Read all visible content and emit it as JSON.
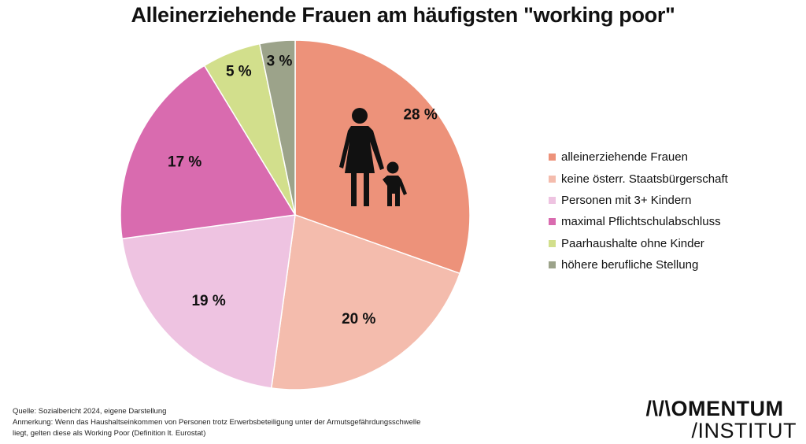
{
  "title": "Alleinerziehende Frauen am häufigsten \"working poor\"",
  "chart_data": {
    "type": "pie",
    "title": "Alleinerziehende Frauen am häufigsten \"working poor\"",
    "legend_position": "right",
    "slices": [
      {
        "label": "alleinerziehende Frauen",
        "value": 28,
        "display": "28 %",
        "color": "#ED927A"
      },
      {
        "label": "keine österr. Staatsbürgerschaft",
        "value": 20,
        "display": "20 %",
        "color": "#F4BCAD"
      },
      {
        "label": "Personen mit 3+ Kindern",
        "value": 19,
        "display": "19 %",
        "color": "#EEC3E1"
      },
      {
        "label": "maximal Pflichtschulabschluss",
        "value": 17,
        "display": "17 %",
        "color": "#D96BAF"
      },
      {
        "label": "Paarhaushalte ohne Kinder",
        "value": 5,
        "display": "5 %",
        "color": "#D2DF8C"
      },
      {
        "label": "höhere berufliche Stellung",
        "value": 3,
        "display": "3 %",
        "color": "#9CA38A"
      }
    ]
  },
  "icon": "mother-child-icon",
  "footer": {
    "source": "Quelle: Sozialbericht 2024, eigene Darstellung",
    "note_line1": "Anmerkung: Wenn das Haushaltseinkommen von Personen trotz Erwerbsbeteiligung unter der Armutsgefährdungsschwelle",
    "note_line2": "liegt, gelten diese als Working Poor (Definition lt. Eurostat)"
  },
  "logo": {
    "line1": "/\\/\\OMENTUM",
    "line2": "/INSTITUT"
  }
}
